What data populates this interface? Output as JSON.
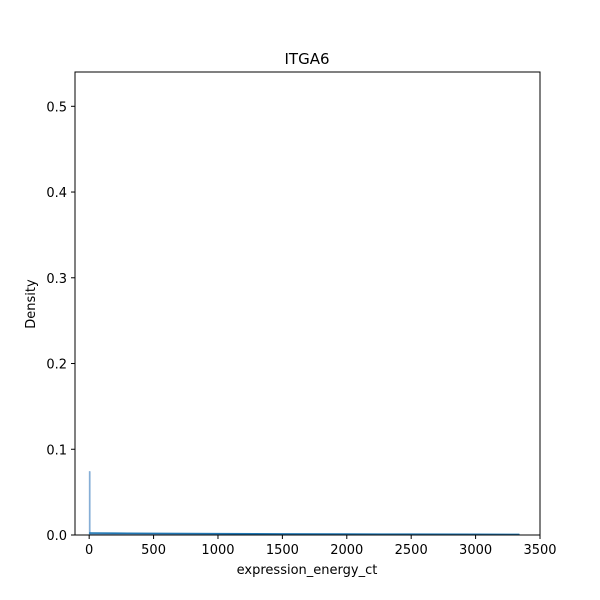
{
  "chart_data": {
    "type": "bar",
    "title": "ITGA6",
    "xlabel": "expression_energy_ct",
    "ylabel": "Density",
    "xlim": [
      -110,
      3500
    ],
    "ylim": [
      0,
      0.54
    ],
    "xticks": [
      0,
      500,
      1000,
      1500,
      2000,
      2500,
      3000,
      3500
    ],
    "xtick_labels": [
      "0",
      "500",
      "1000",
      "1500",
      "2000",
      "2500",
      "3000",
      "3500"
    ],
    "yticks": [
      0.0,
      0.1,
      0.2,
      0.3,
      0.4,
      0.5
    ],
    "ytick_labels": [
      "0.0",
      "0.1",
      "0.2",
      "0.3",
      "0.4",
      "0.5"
    ],
    "grid": false,
    "series": [
      {
        "kind": "histogram",
        "bins": [
          {
            "x0": 0,
            "x1": 7,
            "density": 0.074
          },
          {
            "x0": 7,
            "x1": 3340,
            "density": 0.0004
          }
        ]
      },
      {
        "kind": "kde",
        "x": [
          0,
          200,
          500,
          1000,
          1500,
          2000,
          2500,
          3000,
          3340
        ],
        "y": [
          0.0022,
          0.0021,
          0.0019,
          0.0016,
          0.0013,
          0.0011,
          0.0009,
          0.0008,
          0.0007
        ]
      }
    ],
    "colors": {
      "bar_fill": "#a7c4e0",
      "bar_edge": "#6f9fcf",
      "kde_line": "#1f77b4"
    }
  }
}
